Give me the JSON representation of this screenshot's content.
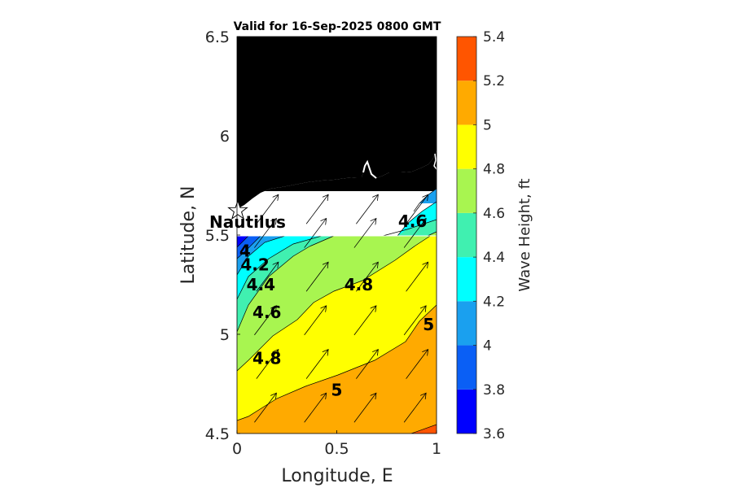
{
  "chart_data": {
    "type": "contour-map",
    "title": "Valid for 16-Sep-2025 0800 GMT",
    "xlabel": "Longitude, E",
    "ylabel": "Latitude, N",
    "xlim": [
      0,
      1
    ],
    "ylim": [
      4.5,
      6.5
    ],
    "xticks": [
      0,
      0.5,
      1
    ],
    "xtick_labels": [
      "0",
      "0.5",
      "1"
    ],
    "yticks": [
      4.5,
      5,
      5.5,
      6,
      6.5
    ],
    "ytick_labels": [
      "4.5",
      "5",
      "5.5",
      "6",
      "6.5"
    ],
    "colorbar": {
      "label": "Wave Height, ft",
      "range": [
        3.6,
        5.4
      ],
      "ticks": [
        "3.6",
        "3.8",
        "4",
        "4.2",
        "4.4",
        "4.6",
        "4.8",
        "5",
        "5.2",
        "5.4"
      ],
      "colors": [
        "#0000ff",
        "#0a5ff5",
        "#1aa0ef",
        "#00ffff",
        "#40f0b0",
        "#a8f550",
        "#ffff00",
        "#ffaa00",
        "#ff5500"
      ]
    },
    "contour_labels": [
      {
        "text": "4",
        "lon": 0.04,
        "lat": 5.42
      },
      {
        "text": "4.2",
        "lon": 0.09,
        "lat": 5.35
      },
      {
        "text": "4.4",
        "lon": 0.12,
        "lat": 5.25
      },
      {
        "text": "4.6",
        "lon": 0.15,
        "lat": 5.11
      },
      {
        "text": "4.8",
        "lon": 0.15,
        "lat": 4.88
      },
      {
        "text": "4.8",
        "lon": 0.61,
        "lat": 5.25
      },
      {
        "text": "4.6",
        "lon": 0.88,
        "lat": 5.57
      },
      {
        "text": "5",
        "lon": 0.5,
        "lat": 4.72
      },
      {
        "text": "5",
        "lon": 0.96,
        "lat": 5.05
      }
    ],
    "station": {
      "name": "Nautilus",
      "lon": 0.0,
      "lat": 5.61
    },
    "land_color": "#000000",
    "data_extent_lat": [
      4.5,
      5.5
    ]
  }
}
